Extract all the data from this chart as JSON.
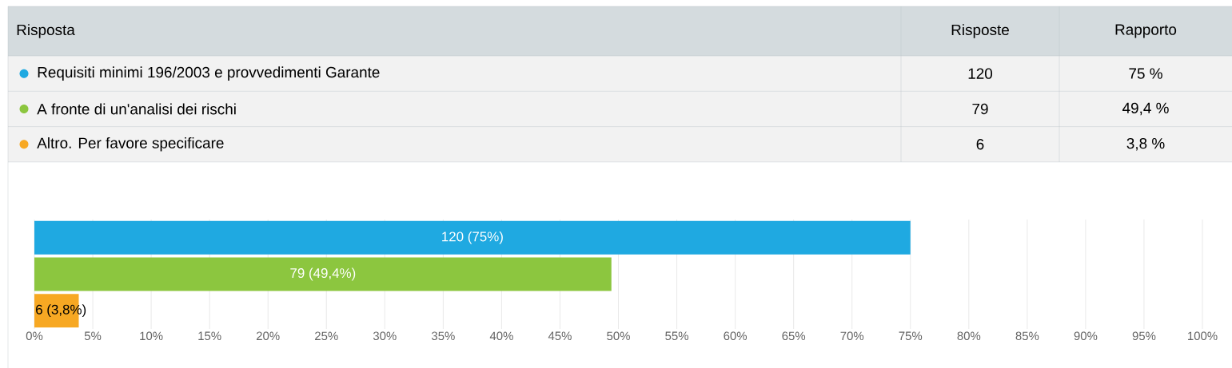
{
  "chart_data": [
    {
      "type": "other",
      "annotations": [
        "Risposta",
        "Risposte",
        "Rapporto",
        "Requisiti minimi 196/2003 e provvedimenti Garante",
        "120",
        "75 %",
        "A fronte di un'analisi dei rischi",
        "79",
        "49,4 %",
        "Altro. Per favore specificare",
        "6",
        "3,8 %"
      ]
    },
    {
      "type": "bar",
      "orientation": "horizontal",
      "categories": [
        null,
        null,
        null
      ],
      "values": [
        75,
        49.4,
        3.8
      ],
      "colors": [
        "#1fa9e1",
        "#8cc63f",
        "#f7a823"
      ],
      "value_labels": [
        "120 (75%)",
        "79 (49,4%)",
        "6 (3,8%)"
      ],
      "xlim": [
        0,
        100
      ],
      "xticks": [
        {
          "value": 0,
          "label": "0%"
        },
        {
          "value": 5,
          "label": "5%"
        },
        {
          "value": 10,
          "label": "10%"
        },
        {
          "value": 15,
          "label": "15%"
        },
        {
          "value": 20,
          "label": "20%"
        },
        {
          "value": 25,
          "label": "25%"
        },
        {
          "value": 30,
          "label": "30%"
        },
        {
          "value": 35,
          "label": "35%"
        },
        {
          "value": 40,
          "label": "40%"
        },
        {
          "value": 45,
          "label": "45%"
        },
        {
          "value": 50,
          "label": "50%"
        },
        {
          "value": 55,
          "label": "55%"
        },
        {
          "value": 60,
          "label": "60%"
        },
        {
          "value": 65,
          "label": "65%"
        },
        {
          "value": 70,
          "label": "70%"
        },
        {
          "value": 75,
          "label": "75%"
        },
        {
          "value": 80,
          "label": "80%"
        },
        {
          "value": 85,
          "label": "85%"
        },
        {
          "value": 90,
          "label": "90%"
        },
        {
          "value": 95,
          "label": "95%"
        },
        {
          "value": 100,
          "label": "100%"
        }
      ],
      "grid": "x"
    }
  ]
}
